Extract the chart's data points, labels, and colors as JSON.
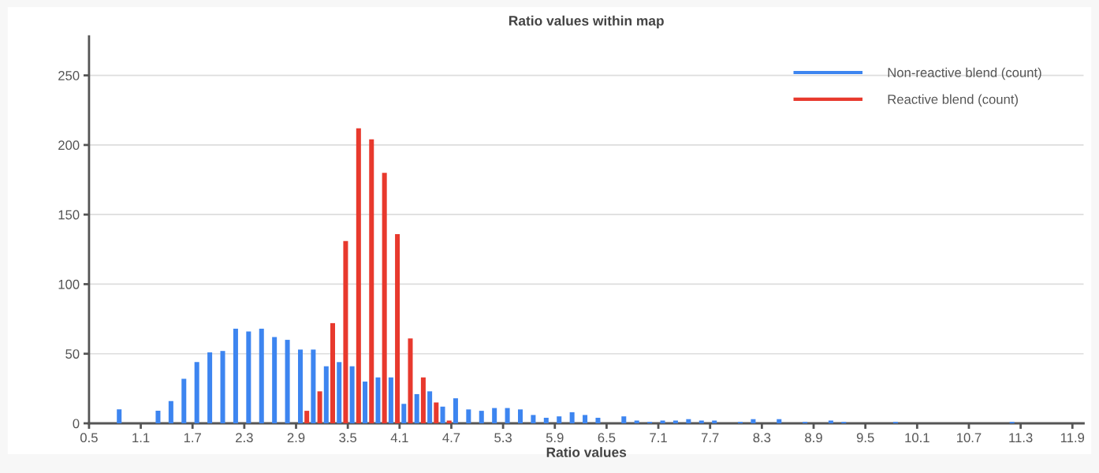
{
  "chart_data": {
    "type": "bar",
    "title": "Ratio values within map",
    "xlabel": "Ratio values",
    "xlim": [
      0.5,
      12.03
    ],
    "xticks": [
      0.5,
      1.1,
      1.7,
      2.3,
      2.9,
      3.5,
      4.1,
      4.7,
      5.3,
      5.9,
      6.5,
      7.1,
      7.7,
      8.3,
      8.9,
      9.5,
      10.1,
      10.7,
      11.3,
      11.9
    ],
    "ylim": [
      0,
      278
    ],
    "yticks": [
      0,
      50,
      100,
      150,
      200,
      250
    ],
    "grid": "y",
    "legend": "top right",
    "series": [
      {
        "name": "Non-reactive blend (count)",
        "color": "#3d85f0",
        "x": [
          0.85,
          1.3,
          1.45,
          1.6,
          1.75,
          1.9,
          2.05,
          2.2,
          2.35,
          2.5,
          2.65,
          2.8,
          2.95,
          3.1,
          3.25,
          3.4,
          3.55,
          3.7,
          3.85,
          4.0,
          4.15,
          4.3,
          4.45,
          4.6,
          4.75,
          4.9,
          5.05,
          5.2,
          5.35,
          5.5,
          5.65,
          5.8,
          5.95,
          6.1,
          6.25,
          6.4,
          6.7,
          6.85,
          7.0,
          7.15,
          7.3,
          7.45,
          7.6,
          7.75,
          8.05,
          8.2,
          8.5,
          8.8,
          9.1,
          9.25,
          9.85,
          11.2
        ],
        "values": [
          10,
          9,
          16,
          32,
          44,
          51,
          52,
          68,
          66,
          68,
          62,
          60,
          53,
          53,
          41,
          44,
          41,
          30,
          33,
          33,
          14,
          21,
          23,
          12,
          18,
          10,
          9,
          11,
          11,
          10,
          6,
          4,
          5,
          8,
          6,
          4,
          5,
          2,
          1,
          2,
          2,
          3,
          2,
          2,
          1,
          3,
          3,
          1,
          2,
          1,
          1,
          1
        ]
      },
      {
        "name": "Reactive blend (count)",
        "color": "#e8392d",
        "x": [
          3.025,
          3.175,
          3.325,
          3.475,
          3.625,
          3.775,
          3.925,
          4.075,
          4.225,
          4.375,
          4.525,
          4.675
        ],
        "values": [
          9,
          23,
          72,
          131,
          212,
          204,
          180,
          136,
          61,
          33,
          15,
          2
        ]
      }
    ]
  }
}
